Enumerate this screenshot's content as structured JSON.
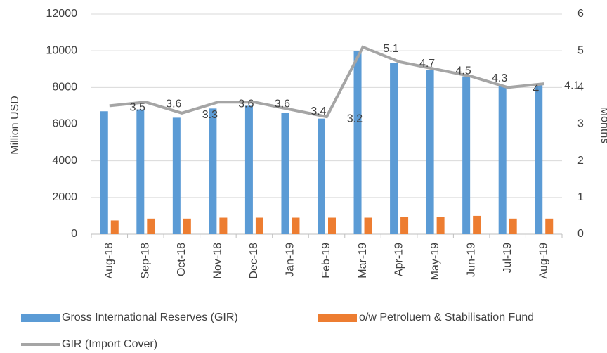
{
  "chart_data": {
    "type": "bar",
    "y_label": "Million USD",
    "y2_label": "Months",
    "categories": [
      "Aug-18",
      "Sep-18",
      "Oct-18",
      "Nov-18",
      "Dec-18",
      "Jan-19",
      "Feb-19",
      "Mar-19",
      "Apr-19",
      "May-19",
      "Jun-19",
      "Jul-19",
      "Aug-19"
    ],
    "series": [
      {
        "name": "Gross International Reserves (GIR)",
        "color": "#5b9bd5",
        "type": "bar",
        "values": [
          6700,
          6800,
          6350,
          6850,
          7000,
          6600,
          6300,
          10000,
          9350,
          8950,
          8600,
          8100,
          8150
        ]
      },
      {
        "name": "o/w Petroluem & Stabilisation Fund",
        "color": "#ed7d31",
        "type": "bar",
        "values": [
          750,
          850,
          850,
          900,
          900,
          900,
          900,
          900,
          950,
          950,
          1000,
          850,
          850
        ]
      },
      {
        "name": "GIR (Import Cover)",
        "color": "#a5a5a5",
        "type": "line",
        "axis": "y2",
        "values": [
          3.5,
          3.6,
          3.3,
          3.6,
          3.6,
          3.4,
          3.2,
          5.1,
          4.7,
          4.5,
          4.3,
          4,
          4.1
        ]
      }
    ],
    "ylim": [
      0,
      12000
    ],
    "yticks": [
      0,
      2000,
      4000,
      6000,
      8000,
      10000,
      12000
    ],
    "y2lim": [
      0,
      6
    ],
    "y2ticks": [
      0,
      1,
      2,
      3,
      4,
      5,
      6
    ],
    "grid": true,
    "legend": "bottom"
  }
}
